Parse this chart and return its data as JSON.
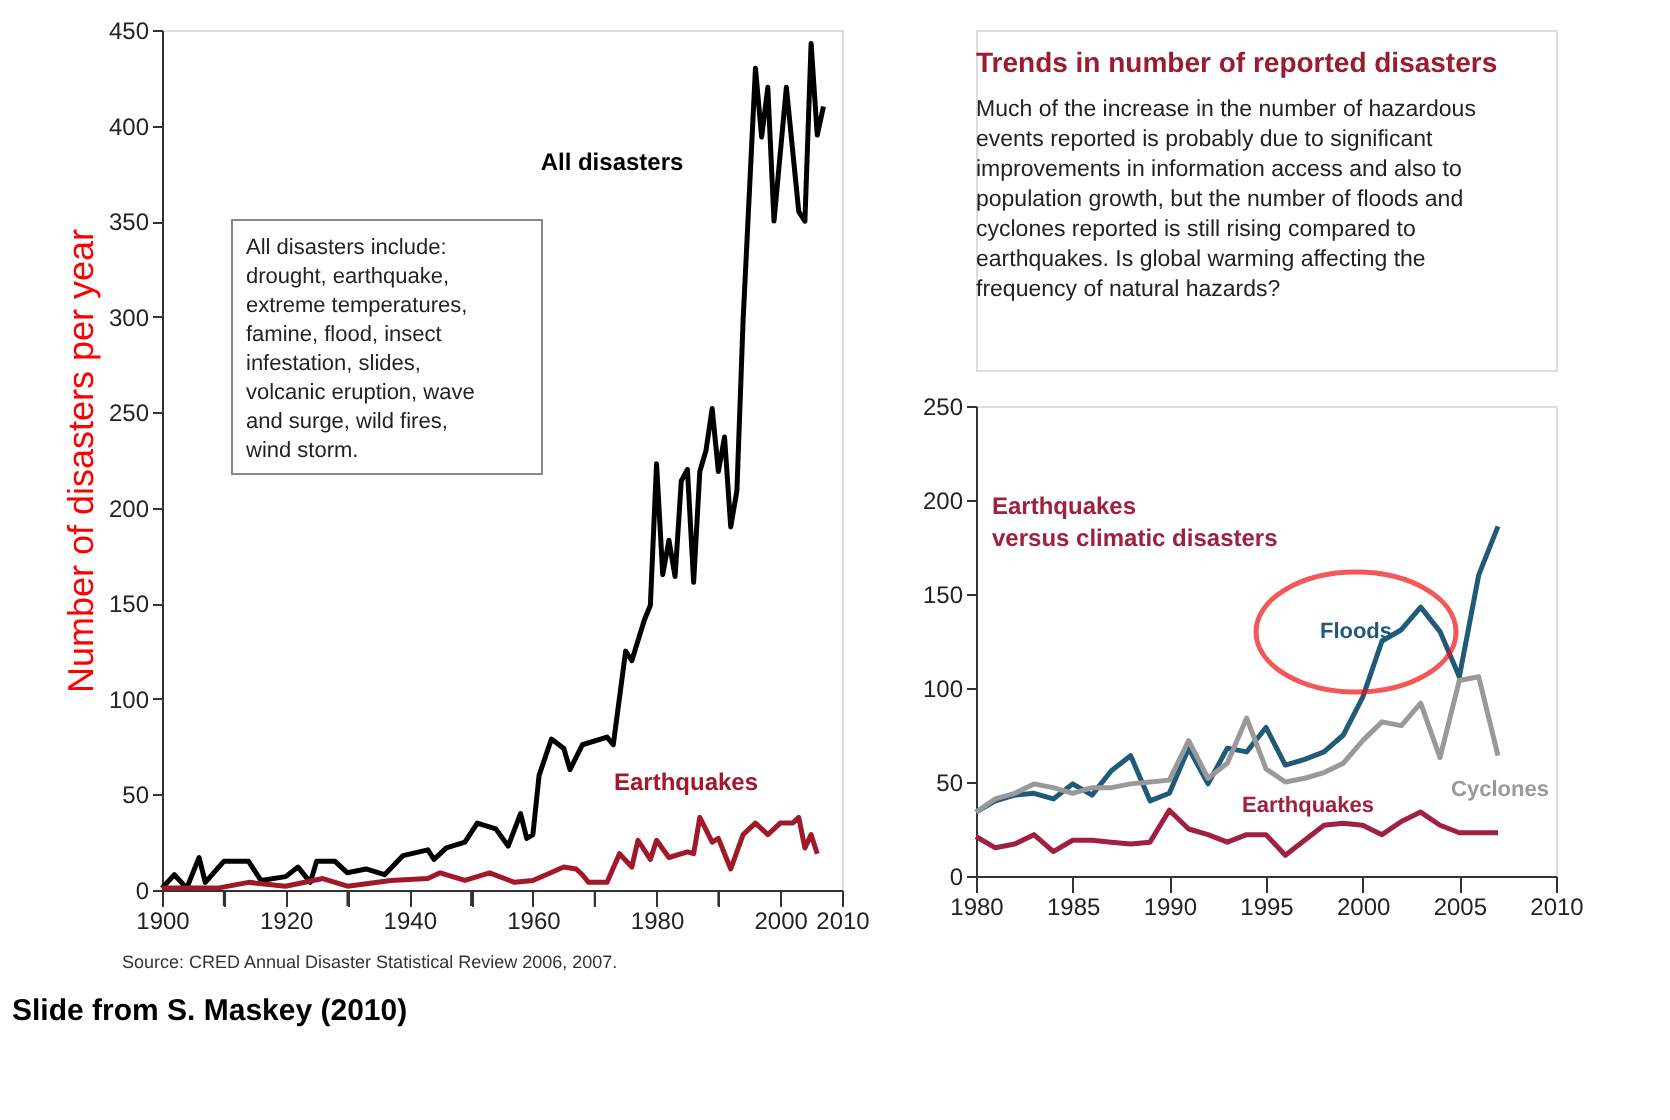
{
  "chart_data": [
    {
      "type": "line",
      "xlabel": null,
      "ylabel": "Number of disasters per year",
      "xlim": [
        1900,
        2010
      ],
      "xticks": [
        1900,
        {
          "value": 1910,
          "label": null
        },
        1920,
        {
          "value": 1930,
          "label": null
        },
        1940,
        {
          "value": 1950,
          "label": null
        },
        1960,
        {
          "value": 1970,
          "label": null
        },
        1980,
        {
          "value": 1990,
          "label": null
        },
        2000,
        2010
      ],
      "ylim": [
        0,
        450
      ],
      "yticks": [
        0,
        50,
        100,
        150,
        200,
        250,
        300,
        350,
        400,
        450
      ],
      "grid": false,
      "legend": false,
      "series": [
        {
          "name": "All disasters",
          "color": "#000000",
          "x": [
            1900,
            1902,
            1904,
            1906,
            1907,
            1910,
            1914,
            1916,
            1920,
            1922,
            1924,
            1925,
            1928,
            1930,
            1933,
            1936,
            1939,
            1943,
            1944,
            1946,
            1949,
            1951,
            1954,
            1956,
            1958,
            1959,
            1960,
            1961,
            1963,
            1965,
            1966,
            1968,
            1972,
            1973,
            1975,
            1976,
            1978,
            1979,
            1980,
            1981,
            1982,
            1983,
            1984,
            1985,
            1986,
            1987,
            1988,
            1989,
            1990,
            1991,
            1992,
            1993,
            1994,
            1996,
            1997,
            1998,
            1999,
            2001,
            2003,
            2004,
            2005,
            2006,
            2007
          ],
          "values": [
            1,
            8,
            1,
            17,
            4,
            15,
            15,
            5,
            7,
            12,
            4,
            15,
            15,
            9,
            11,
            8,
            18,
            21,
            16,
            22,
            25,
            35,
            32,
            23,
            40,
            27,
            29,
            60,
            79,
            74,
            63,
            76,
            80,
            76,
            125,
            120,
            141,
            149,
            223,
            165,
            183,
            164,
            214,
            220,
            161,
            219,
            230,
            252,
            219,
            237,
            190,
            209,
            298,
            430,
            394,
            420,
            350,
            420,
            355,
            350,
            443,
            395,
            410
          ]
        },
        {
          "name": "Earthquakes",
          "color": "#a0182a",
          "x": [
            1900,
            1909,
            1914,
            1920,
            1926,
            1930,
            1937,
            1943,
            1945,
            1949,
            1953,
            1957,
            1960,
            1965,
            1967,
            1968,
            1969,
            1972,
            1974,
            1976,
            1977,
            1979,
            1980,
            1982,
            1985,
            1986,
            1987,
            1989,
            1990,
            1992,
            1994,
            1996,
            1998,
            2000,
            2002,
            2003,
            2004,
            2005,
            2006
          ],
          "values": [
            1,
            1,
            4,
            2,
            6,
            2,
            5,
            6,
            9,
            5,
            9,
            4,
            5,
            12,
            11,
            8,
            4,
            4,
            19,
            12,
            26,
            16,
            26,
            17,
            20,
            19,
            38,
            25,
            27,
            11,
            29,
            35,
            29,
            35,
            35,
            38,
            22,
            29,
            19
          ]
        }
      ],
      "annotations": [
        "All disasters include:\ndrought, earthquake,\nextreme temperatures,\nfamine, flood, insect\ninfestation, slides,\nvolcanic eruption, wave\nand surge, wild fires,\nwind storm.",
        "Source: CRED Annual Disaster Statistical Review 2006, 2007.",
        "Slide  from S. Maskey  (2010)"
      ]
    },
    {
      "type": "line",
      "title": "Trends in number of reported disasters",
      "subtitle": "Much of the increase in the number of hazardous\nevents reported is probably due to significant\nimprovements in information access and also to\npopulation growth, but the number of floods and\ncyclones reported is still rising compared to\nearthquakes. Is global warming affecting the\nfrequency of natural hazards?",
      "xlim": [
        1980,
        2010
      ],
      "xticks": [
        1980,
        1985,
        1990,
        1995,
        2000,
        2005,
        2010
      ],
      "ylim": [
        0,
        250
      ],
      "yticks": [
        0,
        50,
        100,
        150,
        200,
        250
      ],
      "grid": false,
      "legend": false,
      "x": [
        1980,
        1981,
        1982,
        1983,
        1984,
        1985,
        1986,
        1987,
        1988,
        1989,
        1990,
        1991,
        1992,
        1993,
        1994,
        1995,
        1996,
        1997,
        1998,
        1999,
        2000,
        2001,
        2002,
        2003,
        2004,
        2005,
        2006,
        2007
      ],
      "series": [
        {
          "name": "Floods",
          "color": "#1f5a78",
          "values": [
            34,
            40,
            43,
            44,
            41,
            49,
            43,
            56,
            64,
            40,
            44,
            68,
            49,
            68,
            66,
            79,
            59,
            62,
            66,
            75,
            95,
            125,
            131,
            143,
            130,
            106,
            160,
            186
          ]
        },
        {
          "name": "Cyclones",
          "color": "#999999",
          "values": [
            34,
            41,
            44,
            49,
            47,
            44,
            47,
            47,
            49,
            50,
            51,
            72,
            52,
            60,
            84,
            57,
            50,
            52,
            55,
            60,
            72,
            82,
            80,
            92,
            63,
            104,
            106,
            64
          ]
        },
        {
          "name": "Earthquakes",
          "color": "#a02040",
          "values": [
            21,
            15,
            17,
            22,
            13,
            19,
            19,
            18,
            17,
            18,
            35,
            25,
            22,
            18,
            22,
            22,
            11,
            19,
            27,
            28,
            27,
            22,
            29,
            34,
            27,
            23,
            23,
            23
          ]
        }
      ],
      "annotations": [
        "Earthquakes\nversus climatic disasters"
      ]
    }
  ]
}
